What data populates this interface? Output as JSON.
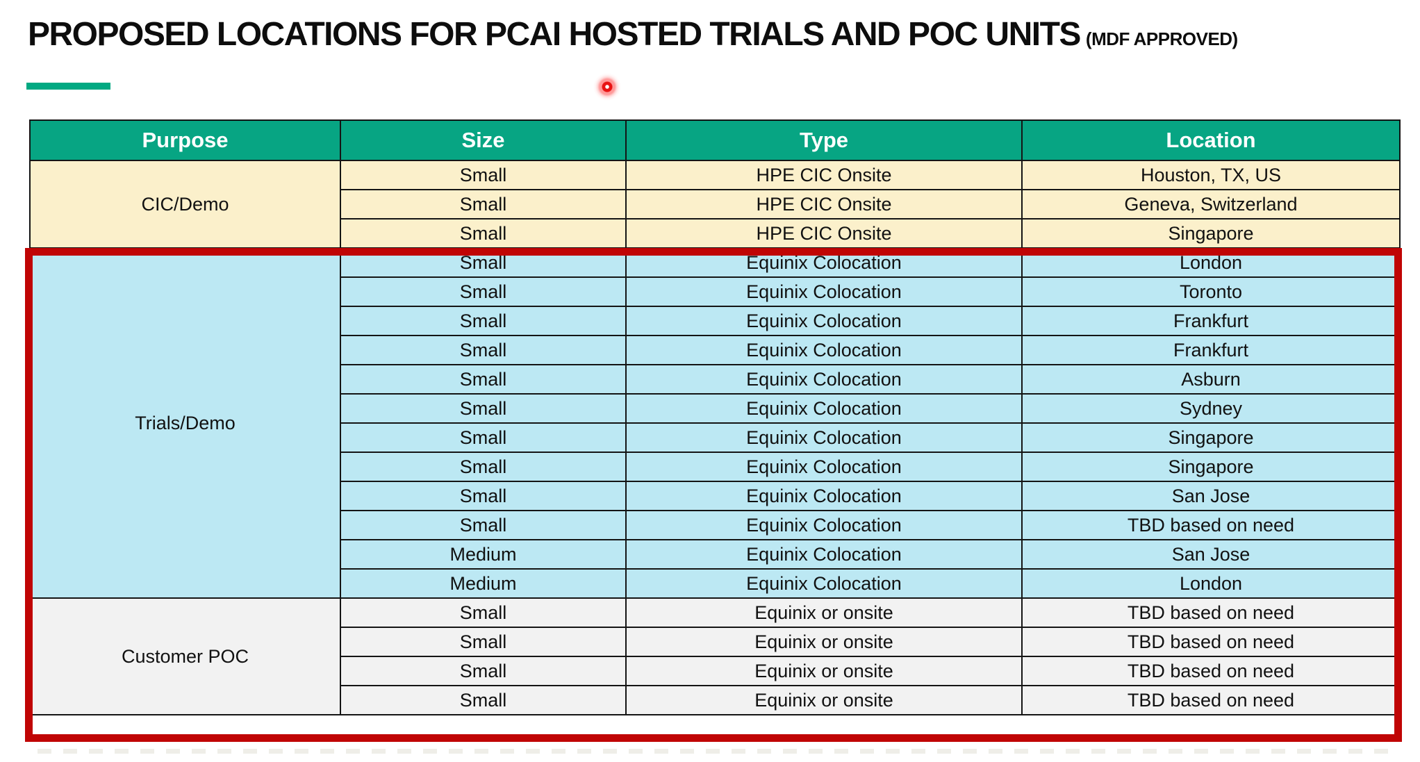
{
  "title": {
    "main": "PROPOSED LOCATIONS FOR PCAI HOSTED TRIALS AND POC UNITS",
    "suffix": "(MDF APPROVED)"
  },
  "colors": {
    "accent_green": "#01A982",
    "header_green": "#07A583",
    "cream": "#FBF0CB",
    "light_blue": "#BCE8F3",
    "light_gray": "#F2F2F2",
    "red_border": "#C00505",
    "laser_red": "#E81414"
  },
  "table": {
    "headers": [
      "Purpose",
      "Size",
      "Type",
      "Location"
    ],
    "groups": [
      {
        "purpose": "CIC/Demo",
        "bg": "cream",
        "rows": [
          [
            "Small",
            "HPE CIC Onsite",
            "Houston, TX, US"
          ],
          [
            "Small",
            "HPE CIC Onsite",
            "Geneva, Switzerland"
          ],
          [
            "Small",
            "HPE CIC Onsite",
            "Singapore"
          ]
        ]
      },
      {
        "purpose": "Trials/Demo",
        "bg": "light_blue",
        "rows": [
          [
            "Small",
            "Equinix Colocation",
            "London"
          ],
          [
            "Small",
            "Equinix Colocation",
            "Toronto"
          ],
          [
            "Small",
            "Equinix Colocation",
            "Frankfurt"
          ],
          [
            "Small",
            "Equinix Colocation",
            "Frankfurt"
          ],
          [
            "Small",
            "Equinix Colocation",
            "Asburn"
          ],
          [
            "Small",
            "Equinix Colocation",
            "Sydney"
          ],
          [
            "Small",
            "Equinix Colocation",
            "Singapore"
          ],
          [
            "Small",
            "Equinix Colocation",
            "Singapore"
          ],
          [
            "Small",
            "Equinix Colocation",
            "San Jose"
          ],
          [
            "Small",
            "Equinix Colocation",
            "TBD based on need"
          ],
          [
            "Medium",
            "Equinix Colocation",
            "San Jose"
          ],
          [
            "Medium",
            "Equinix Colocation",
            "London"
          ]
        ]
      },
      {
        "purpose": "Customer POC",
        "bg": "light_gray",
        "rows": [
          [
            "Small",
            "Equinix or onsite",
            "TBD based on need"
          ],
          [
            "Small",
            "Equinix or onsite",
            "TBD based on need"
          ],
          [
            "Small",
            "Equinix or onsite",
            "TBD based on need"
          ],
          [
            "Small",
            "Equinix or onsite",
            "TBD based on need"
          ]
        ]
      }
    ]
  }
}
